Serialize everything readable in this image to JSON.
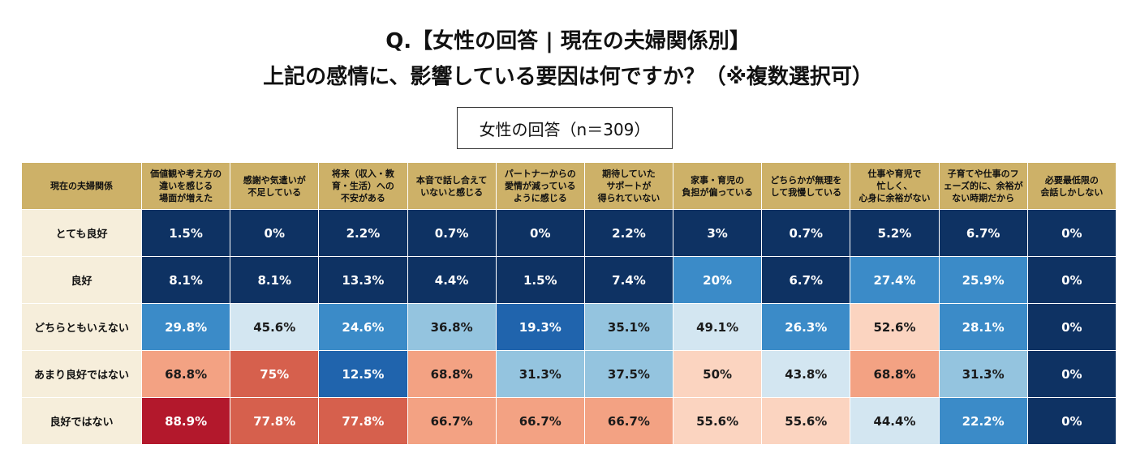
{
  "header": {
    "title_line1": "Q.【女性の回答 | 現在の夫婦関係別】",
    "title_line2": "上記の感情に、影響している要因は何ですか？（※複数選択可）",
    "subtitle": "女性の回答（n＝309）"
  },
  "table": {
    "corner": "現在の夫婦関係",
    "columns": [
      "価値観や考え方の\n違いを感じる\n場面が増えた",
      "感謝や気遣いが\n不足している",
      "将来（収入・教\n育・生活）への\n不安がある",
      "本音で話し合えて\nいないと感じる",
      "パートナーからの\n愛情が減っている\nように感じる",
      "期待していた\nサポートが\n得られていない",
      "家事・育児の\n負担が偏っている",
      "どちらかが無理を\nして我慢している",
      "仕事や育児で\n忙しく、\n心身に余裕がない",
      "子育てや仕事のフ\nェーズ的に、余裕が\nない時期だから",
      "必要最低限の\n会話しかしない"
    ],
    "row_labels": [
      "とても良好",
      "良好",
      "どちらともいえない",
      "あまり良好ではない",
      "良好ではない"
    ],
    "rows": [
      [
        "1.5%",
        "0%",
        "2.2%",
        "0.7%",
        "0%",
        "2.2%",
        "3%",
        "0.7%",
        "5.2%",
        "6.7%",
        "0%"
      ],
      [
        "8.1%",
        "8.1%",
        "13.3%",
        "4.4%",
        "1.5%",
        "7.4%",
        "20%",
        "6.7%",
        "27.4%",
        "25.9%",
        "0%"
      ],
      [
        "29.8%",
        "45.6%",
        "24.6%",
        "36.8%",
        "19.3%",
        "35.1%",
        "49.1%",
        "26.3%",
        "52.6%",
        "28.1%",
        "0%"
      ],
      [
        "68.8%",
        "75%",
        "12.5%",
        "68.8%",
        "31.3%",
        "37.5%",
        "50%",
        "43.8%",
        "68.8%",
        "31.3%",
        "0%"
      ],
      [
        "88.9%",
        "77.8%",
        "77.8%",
        "66.7%",
        "66.7%",
        "66.7%",
        "55.6%",
        "55.6%",
        "44.4%",
        "22.2%",
        "0%"
      ]
    ],
    "cell_colors": [
      [
        "#0e3263",
        "#0e3263",
        "#0e3263",
        "#0e3263",
        "#0e3263",
        "#0e3263",
        "#0e3263",
        "#0e3263",
        "#0e3263",
        "#0e3263",
        "#0e3263"
      ],
      [
        "#0e3263",
        "#0e3263",
        "#0e3263",
        "#0e3263",
        "#0e3263",
        "#0e3263",
        "#3b8bc8",
        "#0e3263",
        "#3b8bc8",
        "#3b8bc8",
        "#0e3263"
      ],
      [
        "#3b8bc8",
        "#d3e6f1",
        "#3b8bc8",
        "#94c4df",
        "#2064ad",
        "#94c4df",
        "#d3e6f1",
        "#3b8bc8",
        "#fbd4c0",
        "#3b8bc8",
        "#0e3263"
      ],
      [
        "#f3a283",
        "#d6604d",
        "#2064ad",
        "#f3a283",
        "#94c4df",
        "#94c4df",
        "#fbd4c0",
        "#d3e6f1",
        "#f3a283",
        "#94c4df",
        "#0e3263"
      ],
      [
        "#b3182c",
        "#d6604d",
        "#d6604d",
        "#f3a283",
        "#f3a283",
        "#f3a283",
        "#fbd4c0",
        "#fbd4c0",
        "#d3e6f1",
        "#3b8bc8",
        "#0e3263"
      ]
    ]
  }
}
